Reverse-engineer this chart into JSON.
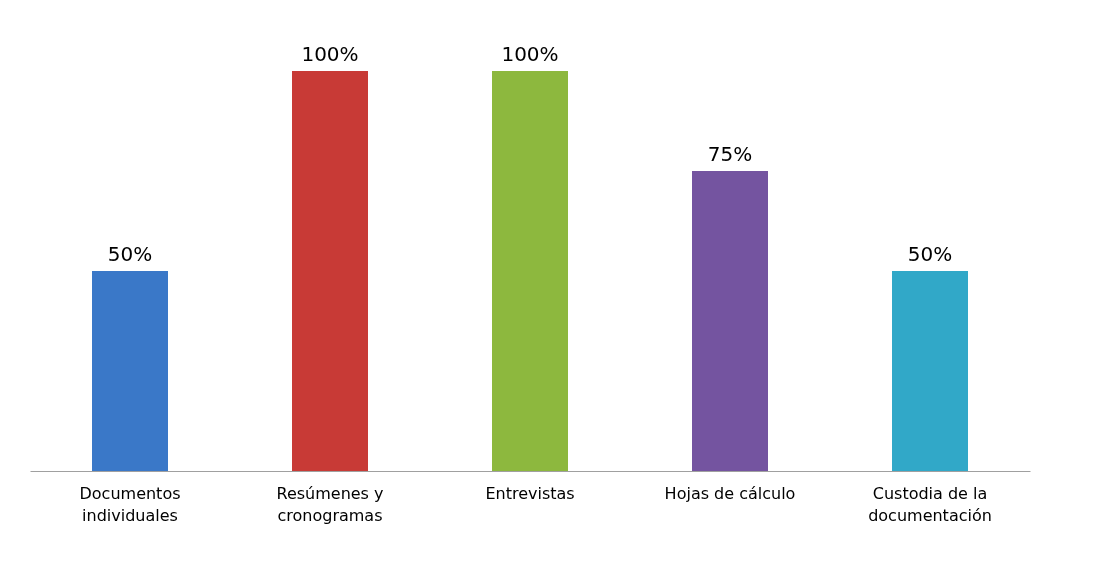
{
  "chart_data": {
    "type": "bar",
    "categories": [
      "Documentos individuales",
      "Resúmenes y cronogramas",
      "Entrevistas",
      "Hojas de cálculo",
      "Custodia de la documentación"
    ],
    "values": [
      50,
      100,
      100,
      75,
      50
    ],
    "colors": [
      "#3a78c8",
      "#c83a36",
      "#8db83e",
      "#7454a0",
      "#31a8c8"
    ],
    "value_labels": [
      "50%",
      "100%",
      "100%",
      "75%",
      "50%"
    ],
    "data_labels": false
  }
}
